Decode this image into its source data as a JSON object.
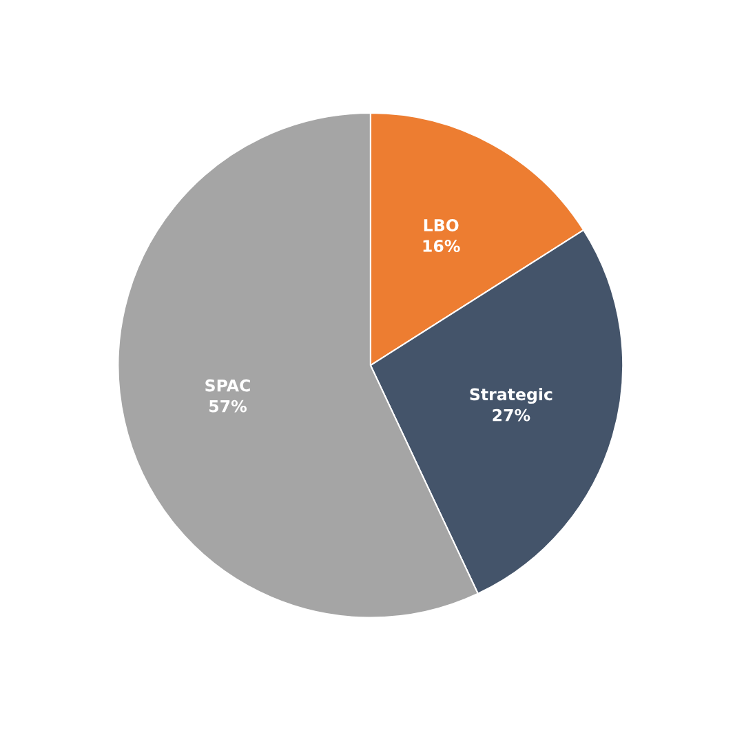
{
  "chart_data": {
    "type": "pie",
    "categories": [
      "LBO",
      "Strategic",
      "SPAC"
    ],
    "values": [
      16,
      27,
      57
    ],
    "colors": [
      "#ed7d31",
      "#44546a",
      "#a5a5a5"
    ],
    "value_labels": [
      "16%",
      "27%",
      "57%"
    ]
  }
}
